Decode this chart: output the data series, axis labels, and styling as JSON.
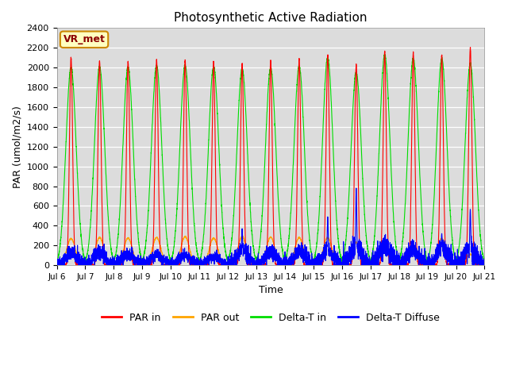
{
  "title": "Photosynthetic Active Radiation",
  "ylabel": "PAR (umol/m2/s)",
  "xlabel": "Time",
  "annotation": "VR_met",
  "ylim": [
    0,
    2400
  ],
  "yticks": [
    0,
    200,
    400,
    600,
    800,
    1000,
    1200,
    1400,
    1600,
    1800,
    2000,
    2200,
    2400
  ],
  "xtick_labels": [
    "Jul 6",
    "Jul 7",
    "Jul 8",
    "Jul 9",
    "Jul 10",
    "Jul 11",
    "Jul 12",
    "Jul 13",
    "Jul 14",
    "Jul 15",
    "Jul 16",
    "Jul 17",
    "Jul 18",
    "Jul 19",
    "Jul 20",
    "Jul 21"
  ],
  "colors": {
    "par_in": "#ff0000",
    "par_out": "#ffa500",
    "delta_t_in": "#00dd00",
    "delta_t_diffuse": "#0000ff"
  },
  "legend": [
    "PAR in",
    "PAR out",
    "Delta-T in",
    "Delta-T Diffuse"
  ],
  "background_color": "#dcdcdc",
  "figure_background": "#ffffff",
  "num_days": 15,
  "daily_par_in_peaks": [
    2100,
    2070,
    2060,
    2080,
    2080,
    2060,
    2040,
    2070,
    2080,
    2130,
    2040,
    2160,
    2150,
    2130,
    2200
  ],
  "daily_par_out_peaks": [
    270,
    280,
    275,
    280,
    290,
    275,
    290,
    285,
    280,
    280,
    230,
    250,
    175,
    270,
    110
  ],
  "daily_delta_t_in_peaks": [
    2000,
    2010,
    2000,
    2020,
    2020,
    2010,
    1990,
    2000,
    2010,
    2100,
    1950,
    2130,
    2090,
    2090,
    2040
  ],
  "daily_delta_t_diffuse_base": [
    120,
    130,
    115,
    100,
    100,
    85,
    150,
    130,
    140,
    150,
    190,
    185,
    155,
    175,
    175
  ],
  "daily_delta_t_diffuse_spike": [
    0,
    0,
    0,
    0,
    0,
    0,
    370,
    0,
    0,
    490,
    780,
    0,
    0,
    320,
    565
  ],
  "start_day": 6
}
